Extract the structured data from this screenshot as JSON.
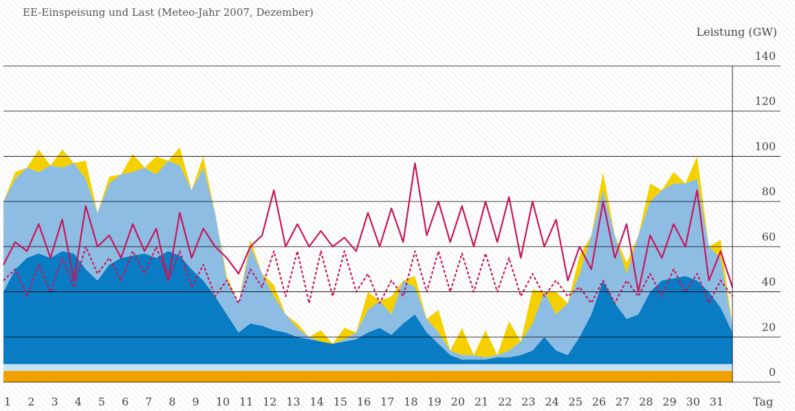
{
  "chart_data": {
    "type": "area",
    "title": "EE-Einspeisung und Last (Meteo-Jahr 2007, Dezember)",
    "y_label": "Leistung (GW)",
    "x_label": "Tag",
    "x": [
      1,
      1.5,
      2,
      2.5,
      3,
      3.5,
      4,
      4.5,
      5,
      5.5,
      6,
      6.5,
      7,
      7.5,
      8,
      8.5,
      9,
      9.5,
      10,
      10.5,
      11,
      11.5,
      12,
      12.5,
      13,
      13.5,
      14,
      14.5,
      15,
      15.5,
      16,
      16.5,
      17,
      17.5,
      18,
      18.5,
      19,
      19.5,
      20,
      20.5,
      21,
      21.5,
      22,
      22.5,
      23,
      23.5,
      24,
      24.5,
      25,
      25.5,
      26,
      26.5,
      27,
      27.5,
      28,
      28.5,
      29,
      29.5,
      30,
      30.5,
      31,
      31.5,
      32
    ],
    "xlim": [
      1,
      32
    ],
    "xticks": [
      1,
      2,
      3,
      4,
      5,
      6,
      7,
      8,
      9,
      10,
      11,
      12,
      13,
      14,
      15,
      16,
      17,
      18,
      19,
      20,
      21,
      22,
      23,
      24,
      25,
      26,
      27,
      28,
      29,
      30,
      31
    ],
    "ylim": [
      0,
      140
    ],
    "yticks": [
      0,
      20,
      40,
      60,
      80,
      100,
      120,
      140
    ],
    "grid": true,
    "series": [
      {
        "type": "area",
        "color": "#f0a000",
        "values": [
          5,
          5,
          5,
          5,
          5,
          5,
          5,
          5,
          5,
          5,
          5,
          5,
          5,
          5,
          5,
          5,
          5,
          5,
          5,
          5,
          5,
          5,
          5,
          5,
          5,
          5,
          5,
          5,
          5,
          5,
          5,
          5,
          5,
          5,
          5,
          5,
          5,
          5,
          5,
          5,
          5,
          5,
          5,
          5,
          5,
          5,
          5,
          5,
          5,
          5,
          5,
          5,
          5,
          5,
          5,
          5,
          5,
          5,
          5,
          5,
          5,
          5,
          5
        ]
      },
      {
        "type": "area",
        "color": "#c6e3f3",
        "values": [
          3,
          3,
          3,
          3,
          3,
          3,
          3,
          3,
          3,
          3,
          3,
          3,
          3,
          3,
          3,
          3,
          3,
          3,
          3,
          3,
          3,
          3,
          3,
          3,
          3,
          3,
          3,
          3,
          3,
          3,
          3,
          3,
          3,
          3,
          3,
          3,
          3,
          3,
          3,
          3,
          3,
          3,
          3,
          3,
          3,
          3,
          3,
          3,
          3,
          3,
          3,
          3,
          3,
          3,
          3,
          3,
          3,
          3,
          3,
          3,
          3,
          3,
          3
        ]
      },
      {
        "type": "area",
        "color": "#0a7cc4",
        "values": [
          32,
          42,
          47,
          49,
          47,
          50,
          49,
          42,
          37,
          44,
          47,
          48,
          49,
          47,
          50,
          48,
          42,
          37,
          30,
          22,
          14,
          18,
          17,
          15,
          14,
          12,
          11,
          10,
          9,
          10,
          11,
          14,
          16,
          13,
          18,
          22,
          14,
          9,
          4,
          2,
          2,
          2,
          3,
          3,
          4,
          6,
          12,
          6,
          4,
          12,
          22,
          37,
          27,
          20,
          22,
          32,
          37,
          38,
          39,
          37,
          32,
          25,
          14
        ]
      },
      {
        "type": "area",
        "color": "#8dbde3",
        "values": [
          40,
          40,
          40,
          36,
          41,
          37,
          40,
          40,
          30,
          36,
          37,
          37,
          38,
          37,
          40,
          40,
          35,
          50,
          37,
          15,
          13,
          34,
          23,
          15,
          8,
          4,
          1,
          0,
          0,
          1,
          3,
          10,
          12,
          9,
          19,
          12,
          6,
          5,
          2,
          2,
          2,
          1,
          1,
          3,
          6,
          12,
          20,
          16,
          23,
          28,
          35,
          40,
          30,
          20,
          35,
          40,
          40,
          42,
          41,
          45,
          20,
          22,
          3
        ]
      },
      {
        "type": "area",
        "color": "#f5d000",
        "values": [
          0,
          3,
          0,
          10,
          0,
          8,
          0,
          8,
          0,
          3,
          0,
          8,
          0,
          8,
          0,
          8,
          0,
          5,
          0,
          2,
          0,
          3,
          0,
          5,
          0,
          2,
          0,
          5,
          0,
          5,
          0,
          8,
          0,
          8,
          0,
          5,
          0,
          10,
          0,
          12,
          0,
          12,
          0,
          13,
          0,
          15,
          0,
          10,
          0,
          8,
          0,
          8,
          0,
          5,
          0,
          8,
          0,
          5,
          0,
          10,
          0,
          8,
          0
        ]
      },
      {
        "type": "line",
        "color": "#c8145a",
        "values": [
          52,
          62,
          58,
          70,
          55,
          72,
          45,
          78,
          60,
          65,
          55,
          70,
          58,
          68,
          45,
          75,
          55,
          68,
          60,
          55,
          48,
          60,
          65,
          85,
          60,
          70,
          60,
          67,
          60,
          64,
          58,
          75,
          60,
          77,
          62,
          97,
          65,
          80,
          62,
          78,
          60,
          80,
          62,
          82,
          55,
          80,
          60,
          72,
          45,
          60,
          50,
          80,
          55,
          70,
          40,
          65,
          55,
          70,
          60,
          85,
          45,
          58,
          42
        ]
      },
      {
        "type": "line",
        "dashed": true,
        "color": "#c8145a",
        "values": [
          45,
          50,
          38,
          52,
          40,
          55,
          42,
          60,
          48,
          55,
          45,
          58,
          48,
          60,
          45,
          58,
          42,
          52,
          38,
          45,
          35,
          50,
          42,
          58,
          38,
          58,
          35,
          58,
          38,
          58,
          40,
          48,
          35,
          45,
          38,
          58,
          40,
          58,
          40,
          57,
          40,
          57,
          40,
          55,
          38,
          48,
          38,
          45,
          38,
          42,
          35,
          45,
          35,
          45,
          38,
          48,
          38,
          50,
          40,
          48,
          35,
          45,
          38
        ]
      }
    ]
  }
}
